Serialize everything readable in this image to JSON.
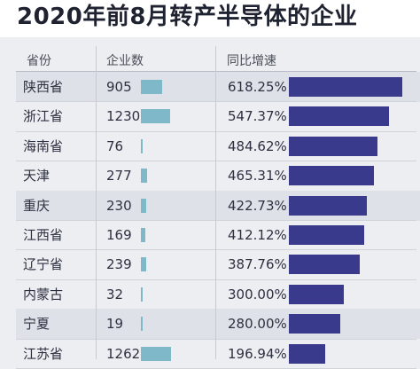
{
  "title": "2020年前8月转产半导体的企业",
  "headers": {
    "province": "省份",
    "count": "企业数",
    "growth": "同比增速"
  },
  "colors": {
    "count_bar": "#7fb8c8",
    "growth_bar": "#3a3a8c",
    "shaded_row": "#dfe1e8"
  },
  "chart_data": {
    "type": "table",
    "title": "2020年前8月转产半导体的企业",
    "columns": [
      "省份",
      "企业数",
      "同比增速"
    ],
    "rows": [
      {
        "province": "陕西省",
        "count": 905,
        "count_label": "905",
        "growth": 618.25,
        "growth_label": "618.25%"
      },
      {
        "province": "浙江省",
        "count": 1230,
        "count_label": "1230",
        "growth": 547.37,
        "growth_label": "547.37%"
      },
      {
        "province": "海南省",
        "count": 76,
        "count_label": "76",
        "growth": 484.62,
        "growth_label": "484.62%"
      },
      {
        "province": "天津",
        "count": 277,
        "count_label": "277",
        "growth": 465.31,
        "growth_label": "465.31%"
      },
      {
        "province": "重庆",
        "count": 230,
        "count_label": "230",
        "growth": 422.73,
        "growth_label": "422.73%"
      },
      {
        "province": "江西省",
        "count": 169,
        "count_label": "169",
        "growth": 412.12,
        "growth_label": "412.12%"
      },
      {
        "province": "辽宁省",
        "count": 239,
        "count_label": "239",
        "growth": 387.76,
        "growth_label": "387.76%"
      },
      {
        "province": "内蒙古",
        "count": 32,
        "count_label": "32",
        "growth": 300.0,
        "growth_label": "300.00%"
      },
      {
        "province": "宁夏",
        "count": 19,
        "count_label": "19",
        "growth": 280.0,
        "growth_label": "280.00%"
      },
      {
        "province": "江苏省",
        "count": 1262,
        "count_label": "1262",
        "growth": 196.94,
        "growth_label": "196.94%"
      }
    ],
    "shaded_rows": [
      0,
      4,
      8
    ]
  }
}
